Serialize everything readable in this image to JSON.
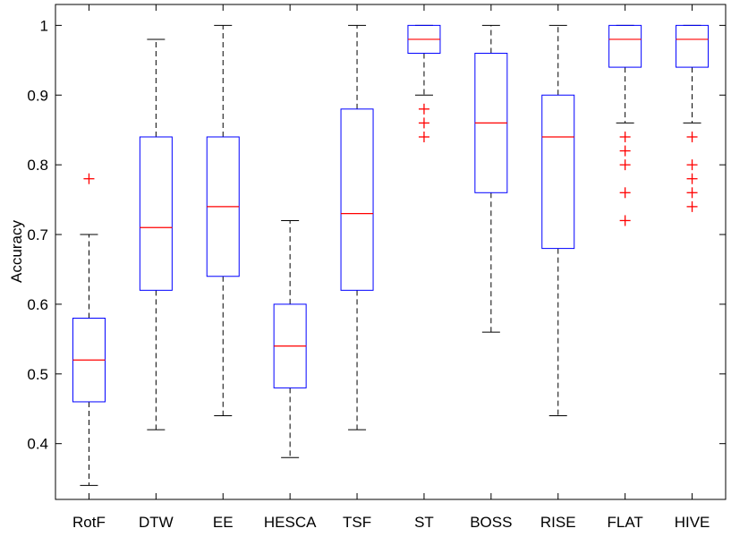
{
  "chart_data": {
    "type": "box",
    "title": "",
    "xlabel": "",
    "ylabel": "Accuracy",
    "ylim": [
      0.32,
      1.03
    ],
    "yticks": [
      "0.4",
      "0.5",
      "0.6",
      "0.7",
      "0.8",
      "0.9",
      "1"
    ],
    "grid": false,
    "colors": {
      "box": "#0000ff",
      "median": "#ff0000",
      "whisker": "#000000",
      "outlier": "#ff0000"
    },
    "categories": [
      "RotF",
      "DTW",
      "EE",
      "HESCA",
      "TSF",
      "ST",
      "BOSS",
      "RISE",
      "FLAT",
      "HIVE"
    ],
    "boxes": [
      {
        "label": "RotF",
        "min": 0.34,
        "q1": 0.46,
        "median": 0.52,
        "q3": 0.58,
        "max": 0.7,
        "outliers": [
          0.78
        ]
      },
      {
        "label": "DTW",
        "min": 0.42,
        "q1": 0.62,
        "median": 0.71,
        "q3": 0.84,
        "max": 0.98,
        "outliers": []
      },
      {
        "label": "EE",
        "min": 0.44,
        "q1": 0.64,
        "median": 0.74,
        "q3": 0.84,
        "max": 1.0,
        "outliers": []
      },
      {
        "label": "HESCA",
        "min": 0.38,
        "q1": 0.48,
        "median": 0.54,
        "q3": 0.6,
        "max": 0.72,
        "outliers": []
      },
      {
        "label": "TSF",
        "min": 0.42,
        "q1": 0.62,
        "median": 0.73,
        "q3": 0.88,
        "max": 1.0,
        "outliers": []
      },
      {
        "label": "ST",
        "min": 0.9,
        "q1": 0.96,
        "median": 0.98,
        "q3": 1.0,
        "max": 1.0,
        "outliers": [
          0.88,
          0.86,
          0.84
        ]
      },
      {
        "label": "BOSS",
        "min": 0.56,
        "q1": 0.76,
        "median": 0.86,
        "q3": 0.96,
        "max": 1.0,
        "outliers": []
      },
      {
        "label": "RISE",
        "min": 0.44,
        "q1": 0.68,
        "median": 0.84,
        "q3": 0.9,
        "max": 1.0,
        "outliers": []
      },
      {
        "label": "FLAT",
        "min": 0.86,
        "q1": 0.94,
        "median": 0.98,
        "q3": 1.0,
        "max": 1.0,
        "outliers": [
          0.84,
          0.82,
          0.8,
          0.76,
          0.72
        ]
      },
      {
        "label": "HIVE",
        "min": 0.86,
        "q1": 0.94,
        "median": 0.98,
        "q3": 1.0,
        "max": 1.0,
        "outliers": [
          0.84,
          0.8,
          0.78,
          0.76,
          0.74
        ]
      }
    ]
  }
}
